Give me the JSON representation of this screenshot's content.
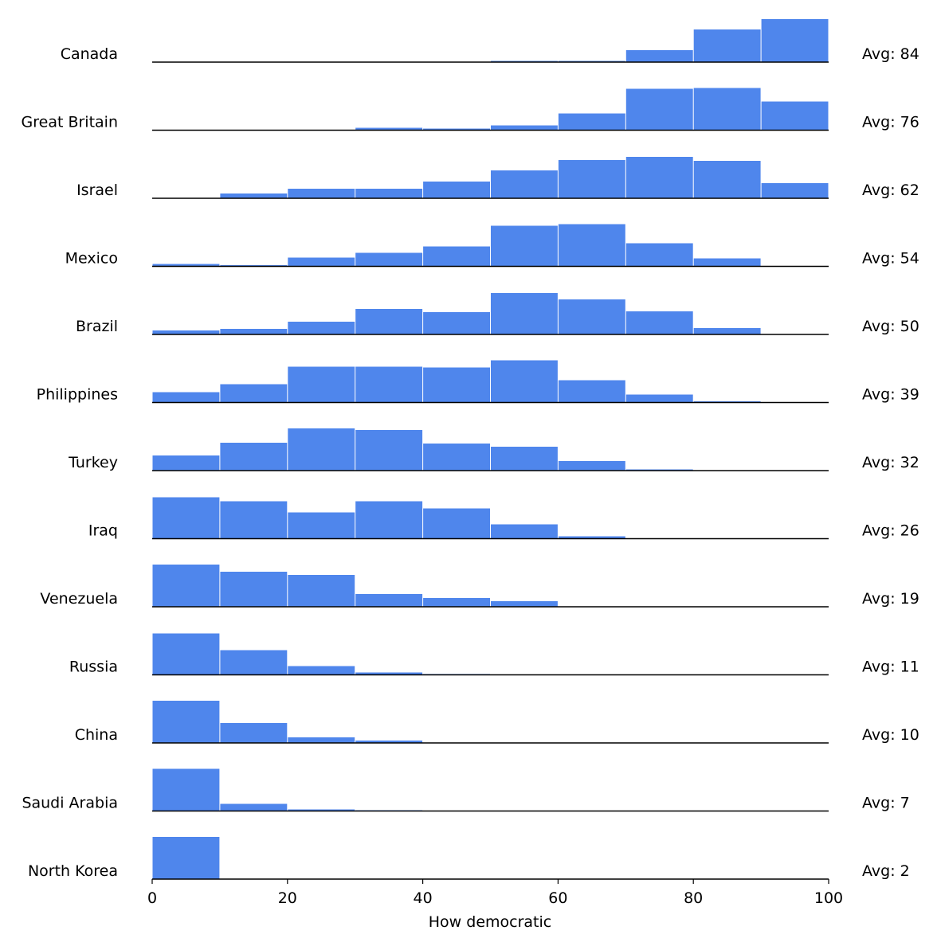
{
  "chart_data": {
    "type": "histogram",
    "xlabel": "How democratic",
    "color": "#4f86ec",
    "bins": [
      0,
      10,
      20,
      30,
      40,
      50,
      60,
      70,
      80,
      90,
      100
    ],
    "xlim": [
      0,
      100
    ],
    "xticks": [
      0,
      20,
      40,
      60,
      80,
      100
    ],
    "ylim": [
      0,
      55
    ],
    "series": [
      {
        "name": "Canada",
        "avg_label": "Avg: 84",
        "values": [
          0,
          0,
          0,
          0,
          0,
          1.5,
          1.5,
          15,
          41,
          54
        ]
      },
      {
        "name": "Great Britain",
        "avg_label": "Avg: 76",
        "values": [
          0,
          0,
          0,
          3,
          2,
          6,
          21,
          52,
          53,
          36
        ]
      },
      {
        "name": "Israel",
        "avg_label": "Avg: 62",
        "values": [
          0,
          6,
          12,
          12,
          21,
          35,
          48,
          52,
          47,
          19
        ]
      },
      {
        "name": "Mexico",
        "avg_label": "Avg: 54",
        "values": [
          3,
          1.5,
          11,
          17,
          25,
          51,
          53,
          29,
          10,
          0
        ]
      },
      {
        "name": "Brazil",
        "avg_label": "Avg: 50",
        "values": [
          5,
          7,
          16,
          32,
          28,
          52,
          44,
          29,
          8,
          0
        ]
      },
      {
        "name": "Philippines",
        "avg_label": "Avg: 39",
        "values": [
          13,
          23,
          45,
          45,
          44,
          53,
          28,
          10,
          1.5,
          0
        ]
      },
      {
        "name": "Turkey",
        "avg_label": "Avg: 32",
        "values": [
          19,
          35,
          53,
          51,
          34,
          30,
          12,
          1.5,
          0,
          0
        ]
      },
      {
        "name": "Iraq",
        "avg_label": "Avg: 26",
        "values": [
          52,
          47,
          33,
          47,
          38,
          18,
          3,
          0,
          0,
          0
        ]
      },
      {
        "name": "Venezuela",
        "avg_label": "Avg: 19",
        "values": [
          53,
          44,
          40,
          16,
          11,
          7,
          0,
          0,
          0,
          0
        ]
      },
      {
        "name": "Russia",
        "avg_label": "Avg: 11",
        "values": [
          52,
          31,
          11,
          3,
          1,
          0,
          0,
          0,
          0,
          0
        ]
      },
      {
        "name": "China",
        "avg_label": "Avg: 10",
        "values": [
          53,
          25,
          7,
          3,
          0,
          0,
          0,
          0,
          0,
          0
        ]
      },
      {
        "name": "Saudi Arabia",
        "avg_label": "Avg: 7",
        "values": [
          53,
          9,
          2,
          1,
          0,
          0,
          0,
          0,
          0,
          0
        ]
      },
      {
        "name": "North Korea",
        "avg_label": "Avg: 2",
        "values": [
          53,
          0,
          0,
          0,
          0,
          0,
          0,
          0,
          0,
          0
        ]
      }
    ]
  }
}
